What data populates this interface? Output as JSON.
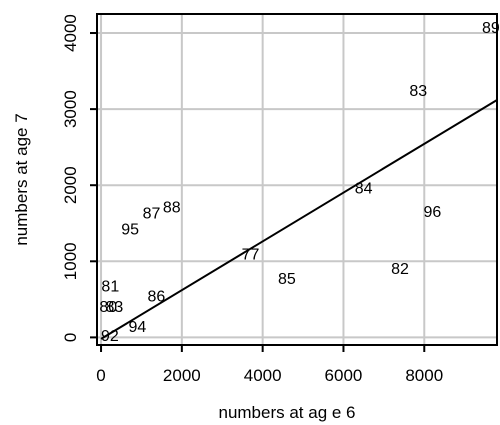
{
  "chart_data": {
    "type": "scatter",
    "xlabel": "numbers at ag e 6",
    "ylabel": "numbers at age 7",
    "xlim": [
      -100,
      9800
    ],
    "ylim": [
      -100,
      4250
    ],
    "xticks": [
      0,
      2000,
      4000,
      6000,
      8000
    ],
    "yticks": [
      0,
      1000,
      2000,
      3000,
      4000
    ],
    "grid": true,
    "point_marker": "year label",
    "points": [
      {
        "label": "89",
        "x": 9650,
        "y": 4080
      },
      {
        "label": "83",
        "x": 7850,
        "y": 3250
      },
      {
        "label": "84",
        "x": 6500,
        "y": 1970
      },
      {
        "label": "96",
        "x": 8200,
        "y": 1660
      },
      {
        "label": "82",
        "x": 7400,
        "y": 910
      },
      {
        "label": "77",
        "x": 3700,
        "y": 1100
      },
      {
        "label": "85",
        "x": 4600,
        "y": 780
      },
      {
        "label": "87",
        "x": 1250,
        "y": 1640
      },
      {
        "label": "88",
        "x": 1750,
        "y": 1720
      },
      {
        "label": "95",
        "x": 720,
        "y": 1430
      },
      {
        "label": "81",
        "x": 230,
        "y": 680
      },
      {
        "label": "80",
        "x": 180,
        "y": 410
      },
      {
        "label": "83",
        "x": 330,
        "y": 410
      },
      {
        "label": "86",
        "x": 1370,
        "y": 550
      },
      {
        "label": "94",
        "x": 900,
        "y": 150
      },
      {
        "label": "92",
        "x": 220,
        "y": 30
      }
    ],
    "fit_line": {
      "x": [
        0,
        9800
      ],
      "y": [
        -20,
        3120
      ]
    },
    "colors": {
      "grid": "#c8c8c8",
      "text": "#000000",
      "line": "#000000",
      "frame": "#000000"
    }
  }
}
